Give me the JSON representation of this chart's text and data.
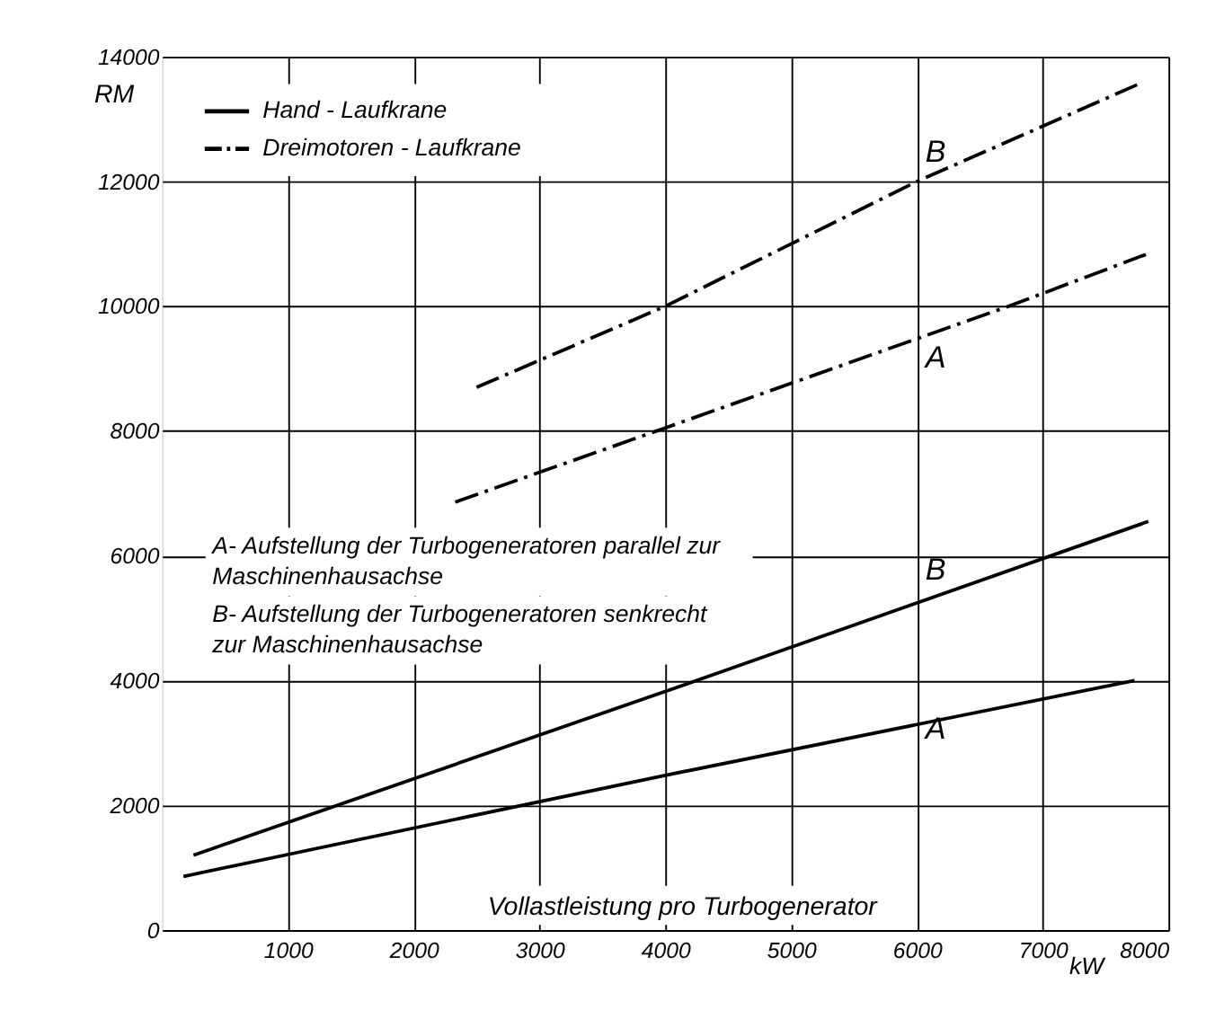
{
  "chart_data": {
    "type": "line",
    "xlabel": "Vollastleistung pro Turbogenerator",
    "ylabel": "RM",
    "xlim": [
      0,
      8000
    ],
    "ylim": [
      0,
      14000
    ],
    "xticks": [
      1000,
      2000,
      3000,
      4000,
      5000,
      6000,
      7000,
      8000
    ],
    "yticks": [
      0,
      2000,
      4000,
      6000,
      8000,
      10000,
      12000,
      14000
    ],
    "grid": true,
    "legend": "top left",
    "marker": "none",
    "series": [
      {
        "name": "Hand - Laufkrane",
        "color": "#000000",
        "line_style": "solid",
        "x": [
          170,
          4000,
          7730
        ],
        "values": [
          860,
          2480,
          4000
        ]
      },
      {
        "color": "#000000",
        "line_style": "solid",
        "x": [
          250,
          4250,
          7840
        ],
        "values": [
          1200,
          4000,
          6550
        ]
      },
      {
        "name": "Dreimotoren - Laufkrane",
        "color": "#000000",
        "line_style": "dashed",
        "x": [
          2330,
          4000,
          6730,
          7820
        ],
        "values": [
          6860,
          8050,
          10000,
          10830
        ]
      },
      {
        "color": "#000000",
        "line_style": "dashed",
        "x": [
          2500,
          4000,
          6000,
          7750
        ],
        "values": [
          8700,
          10000,
          12000,
          13550
        ]
      }
    ],
    "annotations": [
      "A",
      "B",
      "A",
      "B",
      "A- Aufstellung der Turbogeneratoren parallel zur\n     Maschinenhausachse",
      "B- Aufstellung der Turbogeneratoren senkrecht\n     zur Maschinenhausachse",
      "kW"
    ]
  }
}
